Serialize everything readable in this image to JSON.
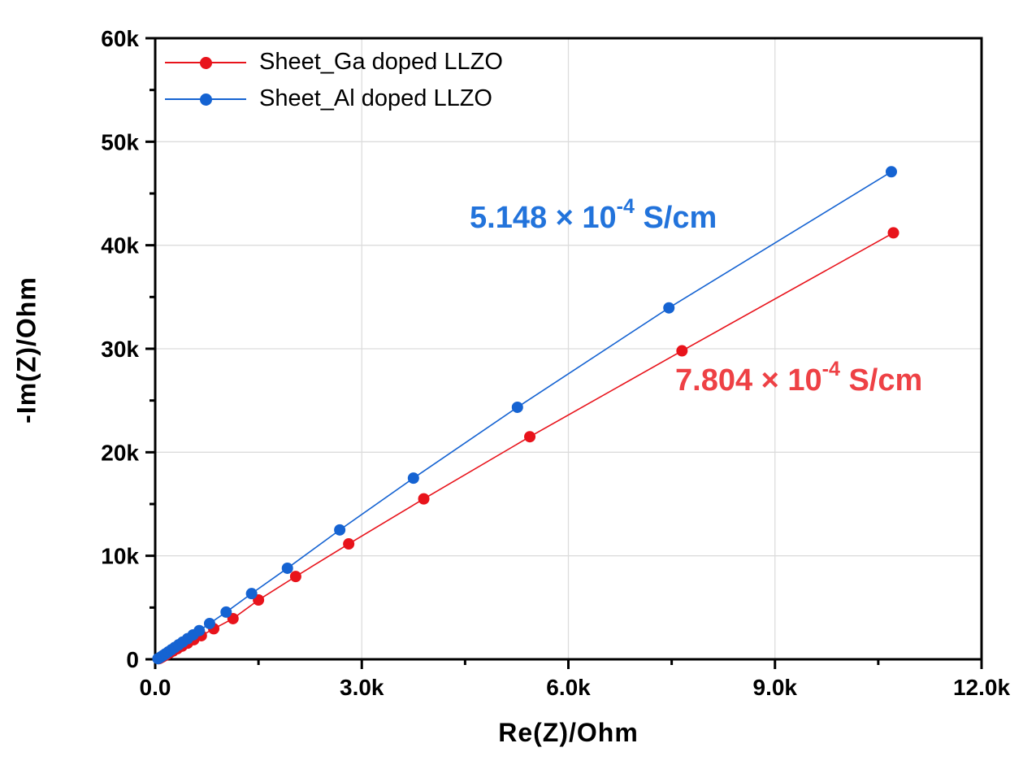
{
  "chart_data": {
    "type": "scatter",
    "title": "",
    "xlabel": "Re(Z)/Ohm",
    "ylabel": "-Im(Z)/Ohm",
    "xlim": [
      0,
      12000
    ],
    "ylim": [
      0,
      60000
    ],
    "x_ticks": {
      "values": [
        0,
        3000,
        6000,
        9000,
        12000
      ],
      "labels": [
        "0.0",
        "3.0k",
        "6.0k",
        "9.0k",
        "12.0k"
      ],
      "minor": [
        1500,
        4500,
        7500,
        10500
      ]
    },
    "y_ticks": {
      "values": [
        0,
        10000,
        20000,
        30000,
        40000,
        50000,
        60000
      ],
      "labels": [
        "0",
        "10k",
        "20k",
        "30k",
        "40k",
        "50k",
        "60k"
      ],
      "minor": [
        5000,
        15000,
        25000,
        35000,
        45000,
        55000
      ]
    },
    "grid": {
      "show": true,
      "color": "#dcdcdc"
    },
    "frame_color": "#000000",
    "legend_position": "top-left",
    "series": [
      {
        "name": "Sheet_Ga doped LLZO",
        "color": "#e8131b",
        "marker": "circle",
        "points": [
          [
            55,
            60
          ],
          [
            75,
            130
          ],
          [
            100,
            220
          ],
          [
            130,
            330
          ],
          [
            165,
            460
          ],
          [
            210,
            620
          ],
          [
            260,
            800
          ],
          [
            320,
            1020
          ],
          [
            390,
            1270
          ],
          [
            470,
            1560
          ],
          [
            560,
            1890
          ],
          [
            670,
            2280
          ],
          [
            850,
            2950
          ],
          [
            1130,
            3930
          ],
          [
            1500,
            5730
          ],
          [
            2040,
            8000
          ],
          [
            2810,
            11150
          ],
          [
            3900,
            15500
          ],
          [
            5440,
            21500
          ],
          [
            7650,
            29800
          ],
          [
            10720,
            41200
          ]
        ]
      },
      {
        "name": "Sheet_Al doped LLZO",
        "color": "#1563d2",
        "marker": "circle",
        "points": [
          [
            40,
            60
          ],
          [
            60,
            130
          ],
          [
            85,
            240
          ],
          [
            115,
            370
          ],
          [
            150,
            530
          ],
          [
            190,
            715
          ],
          [
            235,
            920
          ],
          [
            285,
            1150
          ],
          [
            340,
            1400
          ],
          [
            400,
            1670
          ],
          [
            470,
            1990
          ],
          [
            550,
            2360
          ],
          [
            640,
            2770
          ],
          [
            790,
            3460
          ],
          [
            1030,
            4560
          ],
          [
            1400,
            6350
          ],
          [
            1920,
            8800
          ],
          [
            2680,
            12500
          ],
          [
            3750,
            17500
          ],
          [
            5260,
            24350
          ],
          [
            7460,
            33950
          ],
          [
            10690,
            47100
          ]
        ]
      }
    ],
    "annotations": [
      {
        "series": "Sheet_Al doped LLZO",
        "prefix": "5.148 × 10",
        "exponent": "-4",
        "suffix": " S/cm",
        "color": "#2273db"
      },
      {
        "series": "Sheet_Ga doped LLZO",
        "prefix": "7.804 × 10",
        "exponent": "-4",
        "suffix": " S/cm",
        "color": "#ee4145"
      }
    ]
  },
  "legend": {
    "items": [
      {
        "label": "Sheet_Ga doped LLZO",
        "color": "#e8131b"
      },
      {
        "label": "Sheet_Al doped LLZO",
        "color": "#1563d2"
      }
    ]
  }
}
